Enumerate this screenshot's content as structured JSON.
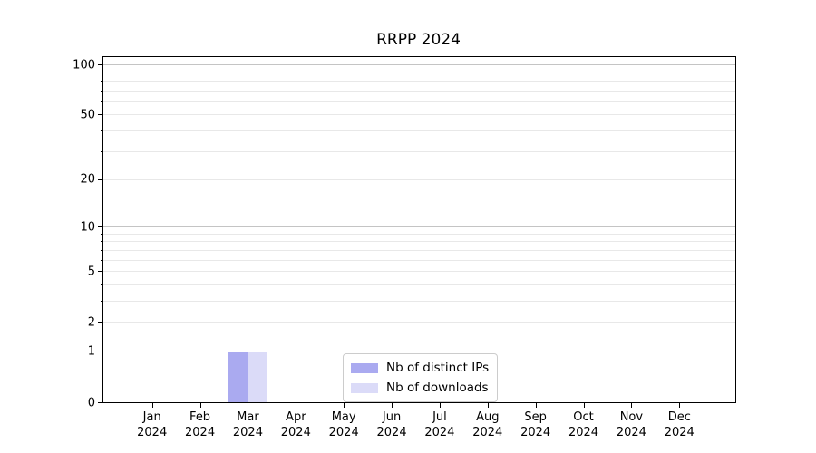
{
  "title": "RRPP 2024",
  "colors": {
    "series": [
      "#aaaaf0",
      "#dbdbf8"
    ],
    "grid_major": "#c4c4c4",
    "grid_minor": "#e8e8e8",
    "axis": "#000000",
    "legend_border": "#cccccc",
    "background": "#ffffff"
  },
  "y_axis": {
    "scale": "log10(1+v)",
    "max_value": 110.6,
    "ticks": [
      {
        "value": 100,
        "label": "100",
        "major": true
      },
      {
        "value": 50,
        "label": "50",
        "major": false
      },
      {
        "value": 20,
        "label": "20",
        "major": false
      },
      {
        "value": 10,
        "label": "10",
        "major": true
      },
      {
        "value": 5,
        "label": "5",
        "major": false
      },
      {
        "value": 2,
        "label": "2",
        "major": false
      },
      {
        "value": 1,
        "label": "1",
        "major": true
      },
      {
        "value": 0,
        "label": "0",
        "major": false
      }
    ],
    "minor_gridline_values": [
      2,
      3,
      4,
      5,
      6,
      7,
      8,
      9,
      20,
      30,
      40,
      50,
      60,
      70,
      80,
      90
    ],
    "major_gridline_values": [
      1,
      10,
      100
    ]
  },
  "chart_data": {
    "type": "bar",
    "title": "RRPP 2024",
    "categories": [
      "Jan 2024",
      "Feb 2024",
      "Mar 2024",
      "Apr 2024",
      "May 2024",
      "Jun 2024",
      "Jul 2024",
      "Aug 2024",
      "Sep 2024",
      "Oct 2024",
      "Nov 2024",
      "Dec 2024"
    ],
    "series": [
      {
        "name": "Nb of distinct IPs",
        "values": [
          0,
          0,
          1,
          0,
          0,
          0,
          0,
          0,
          0,
          0,
          0,
          0
        ]
      },
      {
        "name": "Nb of downloads",
        "values": [
          0,
          0,
          1,
          0,
          0,
          0,
          0,
          0,
          0,
          0,
          0,
          0
        ]
      }
    ],
    "xlabel": "",
    "ylabel": "",
    "ylim": [
      0,
      110.6
    ],
    "yscale": "log-like (log10(1+v))",
    "grid": "horizontal major+minor",
    "legend_position": "lower center inside plot"
  }
}
